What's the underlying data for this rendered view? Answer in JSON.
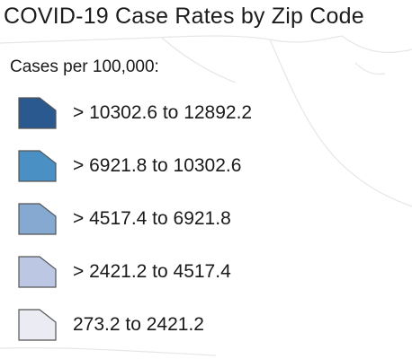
{
  "title": "COVID-19 Case Rates by Zip Code",
  "legend": {
    "heading": "Cases per 100,000:",
    "items": [
      {
        "label": "> 10302.6 to 12892.2",
        "color": "#2a5990"
      },
      {
        "label": "> 6921.8 to 10302.6",
        "color": "#4a90c4"
      },
      {
        "label": "> 4517.4 to 6921.8",
        "color": "#85a9d1"
      },
      {
        "label": "> 2421.2 to 4517.4",
        "color": "#bcc8e3"
      },
      {
        "label": "273.2 to 2421.2",
        "color": "#ebebf4"
      }
    ]
  }
}
